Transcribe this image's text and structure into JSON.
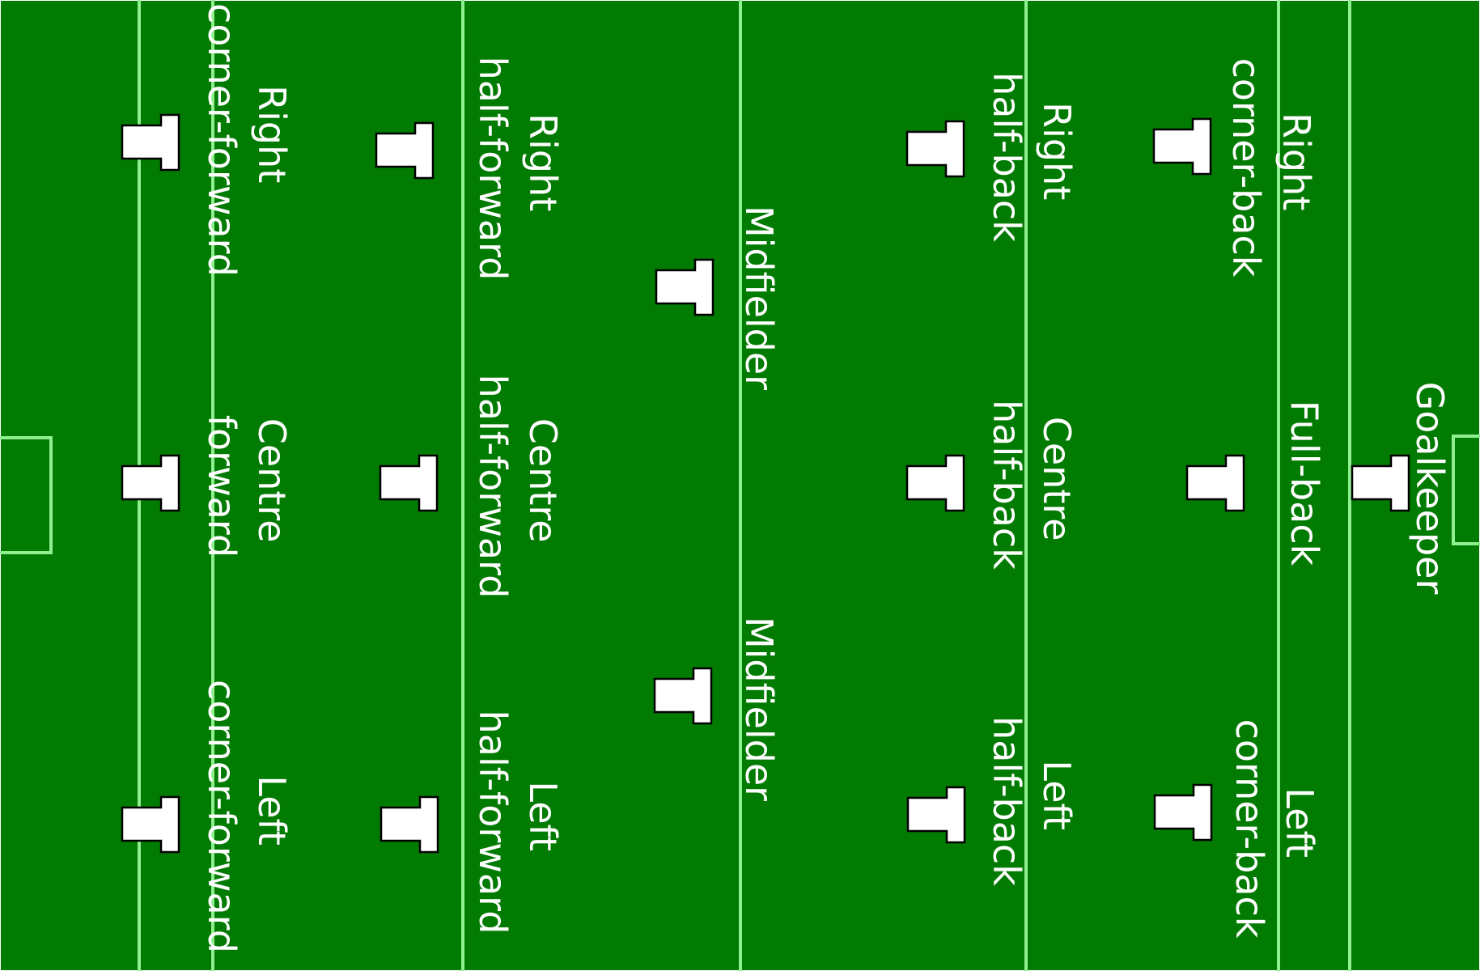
{
  "colors": {
    "pitch": "#027b02",
    "line": "#8ef08e",
    "jersey": "#ffffff",
    "jersey_outline": "#000000",
    "text": "#ffffff"
  },
  "positions": {
    "right_corner_forward": [
      "Right",
      "corner-forward"
    ],
    "centre_forward": [
      "Centre",
      "forward"
    ],
    "left_corner_forward": [
      "Left",
      "corner-forward"
    ],
    "right_half_forward": [
      "Right",
      "half-forward"
    ],
    "centre_half_forward": [
      "Centre",
      "half-forward"
    ],
    "left_half_forward": [
      "Left",
      "half-forward"
    ],
    "midfielder_1": [
      "Midfielder"
    ],
    "midfielder_2": [
      "Midfielder"
    ],
    "right_half_back": [
      "Right",
      "half-back"
    ],
    "centre_half_back": [
      "Centre",
      "half-back"
    ],
    "left_half_back": [
      "Left",
      "half-back"
    ],
    "right_corner_back": [
      "Right",
      "corner-back"
    ],
    "full_back": [
      "Full-back"
    ],
    "left_corner_back": [
      "Left",
      "corner-back"
    ],
    "goalkeeper": [
      "Goalkeeper"
    ]
  },
  "icons": {
    "jersey": "jersey-icon"
  }
}
